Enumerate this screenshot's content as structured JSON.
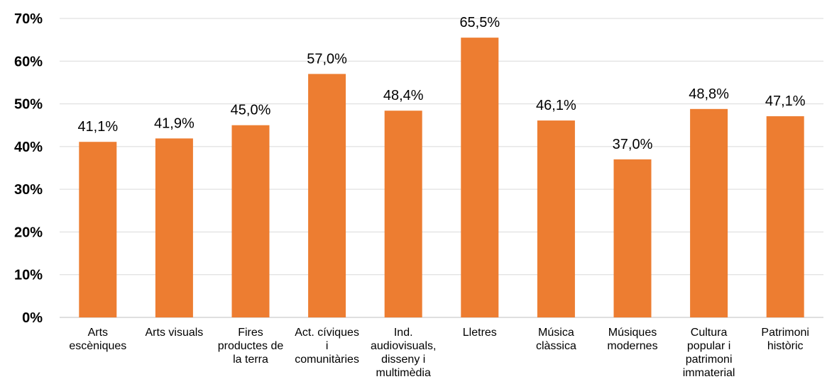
{
  "chart_data": {
    "type": "bar",
    "categories": [
      [
        "Arts",
        "escèniques"
      ],
      [
        "Arts visuals"
      ],
      [
        "Fires",
        "productes de",
        "la terra"
      ],
      [
        "Act. cíviques",
        "i",
        "comunitàries"
      ],
      [
        "Ind.",
        "audiovisuals,",
        "disseny i",
        "multimèdia"
      ],
      [
        "Lletres"
      ],
      [
        "Música",
        "clàssica"
      ],
      [
        "Músiques",
        "modernes"
      ],
      [
        "Cultura",
        "popular i",
        "patrimoni",
        "immaterial"
      ],
      [
        "Patrimoni",
        "històric"
      ]
    ],
    "values": [
      41.1,
      41.9,
      45.0,
      57.0,
      48.4,
      65.5,
      46.1,
      37.0,
      48.8,
      47.1
    ],
    "data_labels": [
      "41,1%",
      "41,9%",
      "45,0%",
      "57,0%",
      "48,4%",
      "65,5%",
      "46,1%",
      "37,0%",
      "48,8%",
      "47,1%"
    ],
    "y_ticks": [
      0,
      10,
      20,
      30,
      40,
      50,
      60,
      70
    ],
    "y_tick_labels": [
      "0%",
      "10%",
      "20%",
      "30%",
      "40%",
      "50%",
      "60%",
      "70%"
    ],
    "ylim": [
      0,
      70
    ],
    "grid": true,
    "bar_color": "#ed7d31",
    "title": "",
    "xlabel": "",
    "ylabel": ""
  }
}
